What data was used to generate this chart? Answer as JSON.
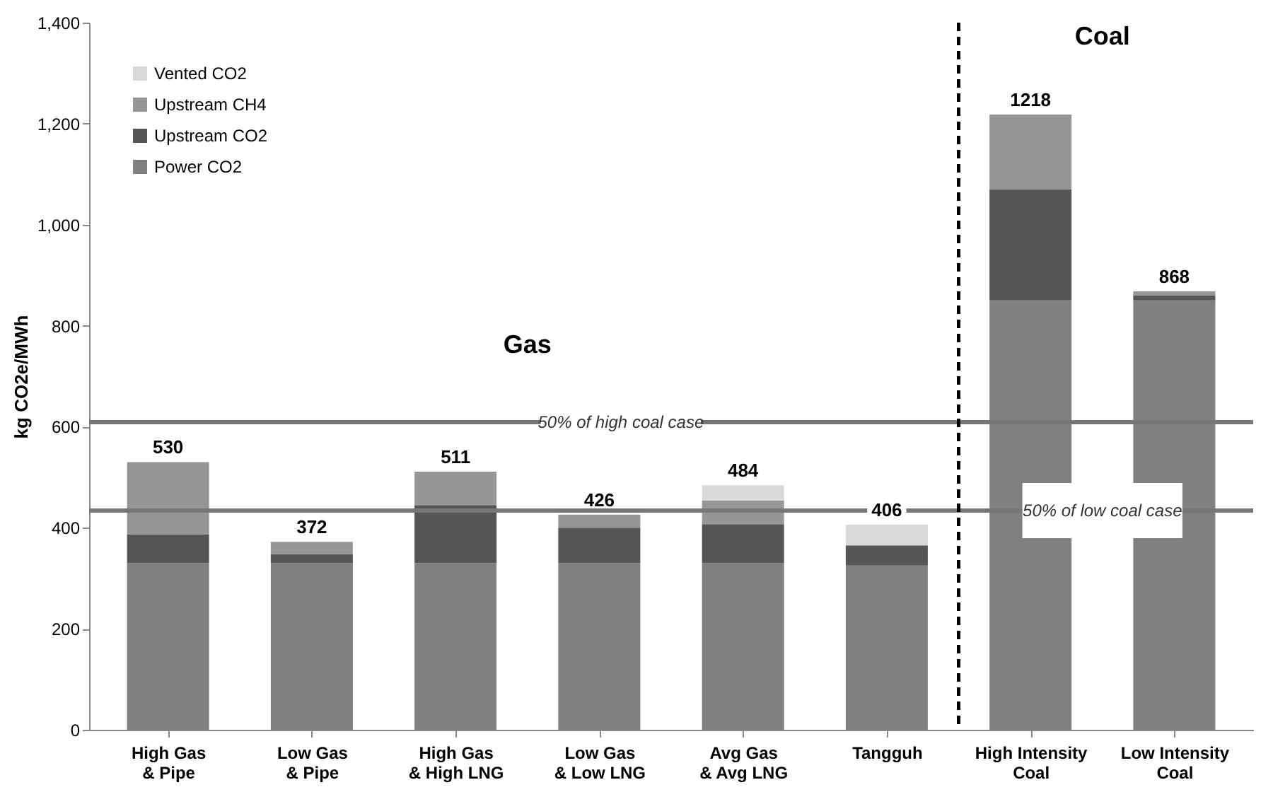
{
  "chart_data": {
    "type": "bar",
    "stacked": true,
    "ylabel": "kg CO2e/MWh",
    "categories": [
      "High Gas\n& Pipe",
      "Low Gas\n& Pipe",
      "High Gas\n& High LNG",
      "Low Gas\n& Low LNG",
      "Avg Gas\n& Avg LNG",
      "Tangguh",
      "High Intensity\nCoal",
      "Low Intensity\nCoal"
    ],
    "series": [
      {
        "name": "Power CO2",
        "color": "#808080",
        "values": [
          330,
          330,
          330,
          330,
          330,
          325,
          850,
          850
        ]
      },
      {
        "name": "Upstream CO2",
        "color": "#555555",
        "values": [
          57,
          18,
          115,
          70,
          77,
          40,
          220,
          10
        ]
      },
      {
        "name": "Upstream CH4",
        "color": "#969696",
        "values": [
          143,
          24,
          66,
          26,
          47,
          0,
          148,
          8
        ]
      },
      {
        "name": "Vented CO2",
        "color": "#d9d9d9",
        "values": [
          0,
          0,
          0,
          0,
          30,
          41,
          0,
          0
        ]
      }
    ],
    "totals": [
      "530",
      "372",
      "511",
      "426",
      "484",
      "406",
      "1218",
      "868"
    ],
    "ylim": [
      0,
      1400
    ],
    "yticks": [
      0,
      200,
      400,
      600,
      800,
      {
        "value": 1000,
        "label": "1,000"
      },
      {
        "value": 1200,
        "label": "1,200"
      },
      {
        "value": 1400,
        "label": "1,400"
      }
    ],
    "ref_lines": [
      {
        "axis": "y",
        "value": 609,
        "label": "50% of high coal case",
        "color": "#777777"
      },
      {
        "axis": "y",
        "value": 434,
        "label": "50% of low coal case",
        "color": "#777777"
      }
    ],
    "annotations": [
      "Gas",
      "Coal"
    ],
    "legend": "top left",
    "grid": false
  }
}
